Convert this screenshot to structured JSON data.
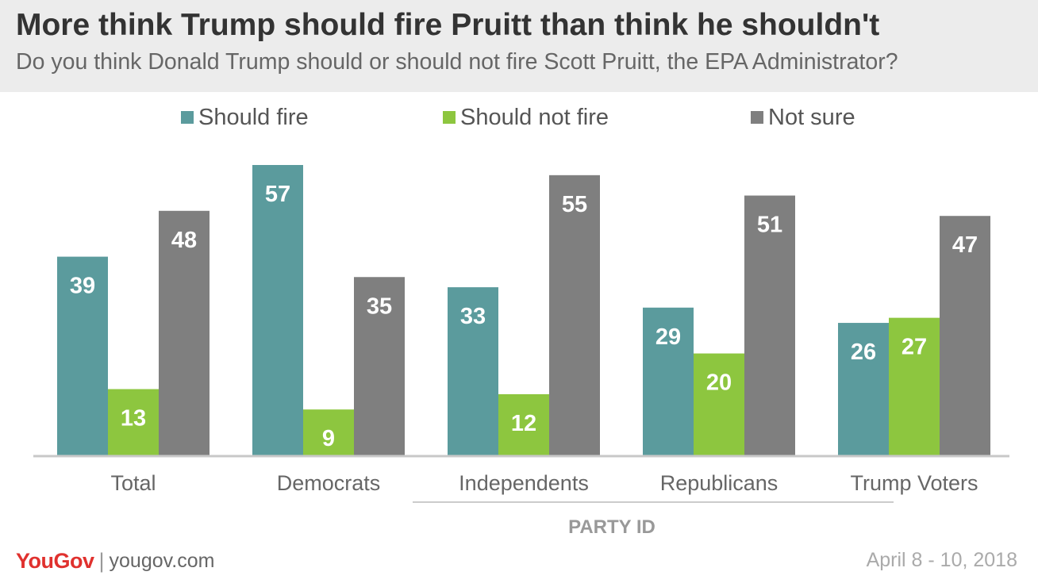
{
  "header": {
    "title": "More think Trump should fire Pruitt than think he shouldn't",
    "subtitle": "Do you think Donald Trump should or should not fire Scott Pruitt, the EPA Administrator?"
  },
  "chart_data": {
    "type": "bar",
    "title": "More think Trump should fire Pruitt than think he shouldn't",
    "subtitle": "Do you think Donald Trump should or should not fire Scott Pruitt, the EPA Administrator?",
    "categories": [
      "Total",
      "Democrats",
      "Independents",
      "Republicans",
      "Trump Voters"
    ],
    "series": [
      {
        "name": "Should fire",
        "color": "#5b9b9d",
        "values": [
          39,
          57,
          33,
          29,
          26
        ]
      },
      {
        "name": "Should not fire",
        "color": "#8dc63f",
        "values": [
          13,
          9,
          12,
          20,
          27
        ]
      },
      {
        "name": "Not sure",
        "color": "#7f7f7f",
        "values": [
          48,
          35,
          55,
          51,
          47
        ]
      }
    ],
    "group_label": "PARTY ID",
    "group_categories": [
      "Independents",
      "Republicans",
      "Trump Voters"
    ],
    "ylim": [
      0,
      57
    ],
    "legend_position": "top",
    "grid": false
  },
  "footer": {
    "brand": "YouGov",
    "separator": "|",
    "url": "yougov.com",
    "date": "April 8 - 10, 2018"
  }
}
